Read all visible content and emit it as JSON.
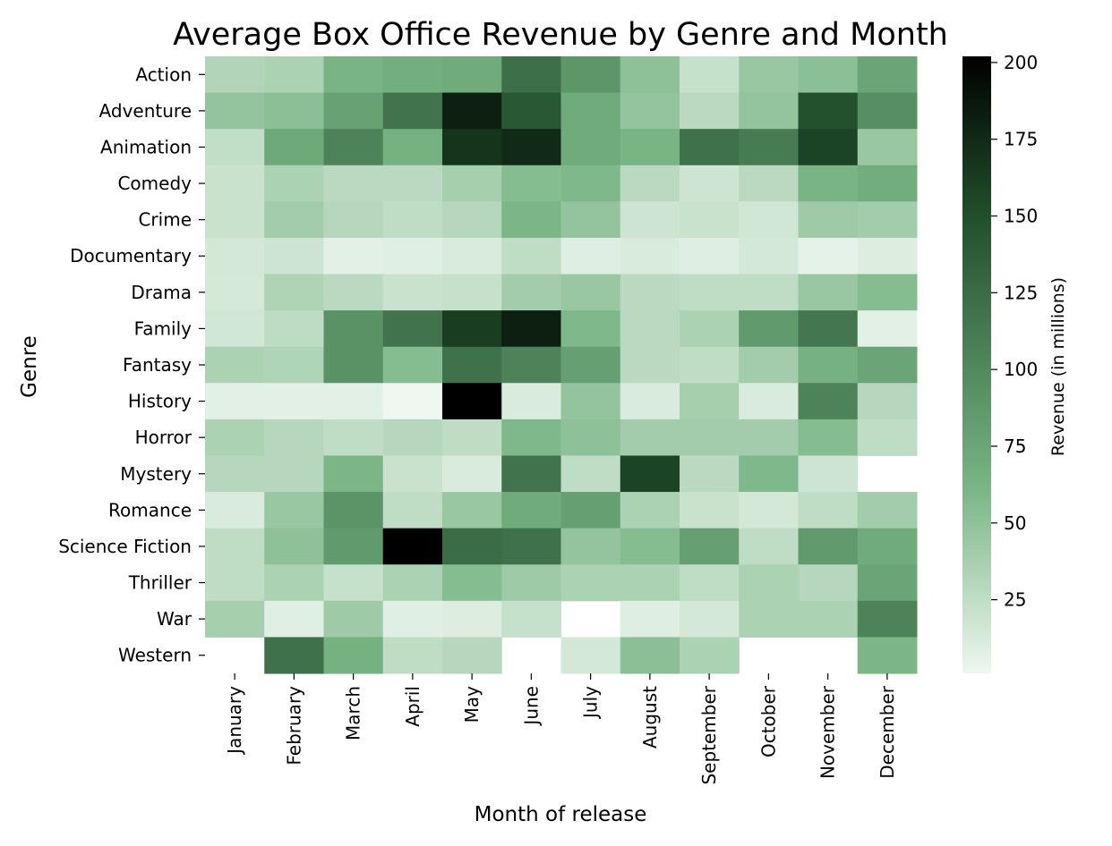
{
  "chart_data": {
    "type": "heatmap",
    "title": "Average Box Office Revenue by Genre and Month",
    "xlabel": "Month of release",
    "ylabel": "Genre",
    "colorbar_label": "Revenue (in millions)",
    "colorbar_ticks": [
      25,
      50,
      75,
      100,
      125,
      150,
      175,
      200
    ],
    "value_range": [
      1,
      202
    ],
    "colormap": {
      "low": "#eef7f0",
      "mid": "#79b585",
      "high": "#1f4d2a",
      "max": "#000000"
    },
    "x": [
      "January",
      "February",
      "March",
      "April",
      "May",
      "June",
      "July",
      "August",
      "September",
      "October",
      "November",
      "December"
    ],
    "y": [
      "Action",
      "Adventure",
      "Animation",
      "Comedy",
      "Crime",
      "Documentary",
      "Drama",
      "Family",
      "Fantasy",
      "History",
      "Horror",
      "Mystery",
      "Romance",
      "Science Fiction",
      "Thriller",
      "War",
      "Western"
    ],
    "values": [
      [
        32,
        35,
        62,
        67,
        70,
        122,
        88,
        50,
        22,
        45,
        52,
        75
      ],
      [
        48,
        52,
        78,
        118,
        182,
        142,
        70,
        48,
        28,
        48,
        148,
        95
      ],
      [
        24,
        72,
        105,
        65,
        168,
        175,
        70,
        62,
        120,
        112,
        158,
        45
      ],
      [
        20,
        35,
        28,
        28,
        38,
        55,
        58,
        28,
        18,
        28,
        62,
        68
      ],
      [
        20,
        40,
        30,
        25,
        30,
        60,
        48,
        18,
        20,
        16,
        42,
        40
      ],
      [
        15,
        18,
        7,
        8,
        12,
        25,
        9,
        12,
        9,
        15,
        6,
        10
      ],
      [
        14,
        34,
        28,
        20,
        22,
        40,
        45,
        28,
        25,
        25,
        45,
        55
      ],
      [
        16,
        26,
        92,
        118,
        162,
        182,
        58,
        28,
        35,
        85,
        115,
        7
      ],
      [
        35,
        33,
        92,
        55,
        120,
        105,
        80,
        28,
        25,
        40,
        65,
        75
      ],
      [
        7,
        7,
        7,
        1,
        202,
        12,
        48,
        12,
        38,
        12,
        105,
        30
      ],
      [
        35,
        30,
        25,
        30,
        25,
        58,
        50,
        40,
        40,
        40,
        55,
        25
      ],
      [
        30,
        30,
        60,
        20,
        12,
        118,
        25,
        158,
        28,
        58,
        18,
        null
      ],
      [
        12,
        45,
        90,
        25,
        45,
        70,
        80,
        35,
        20,
        15,
        25,
        40
      ],
      [
        25,
        50,
        85,
        202,
        125,
        120,
        48,
        55,
        80,
        25,
        85,
        70
      ],
      [
        25,
        35,
        22,
        35,
        55,
        42,
        35,
        35,
        25,
        35,
        30,
        75
      ],
      [
        38,
        8,
        42,
        8,
        10,
        22,
        null,
        9,
        15,
        35,
        35,
        105
      ],
      [
        null,
        120,
        65,
        25,
        30,
        null,
        15,
        52,
        35,
        null,
        null,
        60
      ]
    ]
  }
}
